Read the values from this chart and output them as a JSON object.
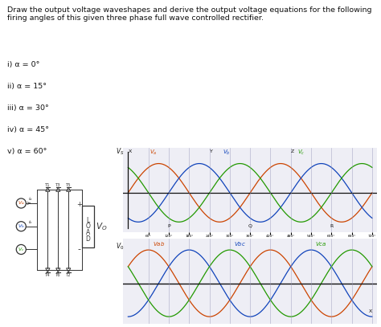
{
  "title_text": "Draw the output voltage waveshapes and derive the output voltage equations for the following\nfiring angles of this given three phase full wave controlled rectifier.",
  "items": [
    "i) α = 0°",
    "ii) α = 15°",
    "iii) α = 30°",
    "iv) α = 45°",
    "v) α = 60°"
  ],
  "va_color": "#cc4400",
  "vb_color": "#1144bb",
  "vc_color": "#229900",
  "vab_color": "#cc4400",
  "vbc_color": "#1144bb",
  "vca_color": "#229900",
  "bg_color": "#eeeef5",
  "axis_color": "#111111",
  "grid_color": "#9999bb",
  "text_color": "#111111",
  "circuit_color": "#333333"
}
